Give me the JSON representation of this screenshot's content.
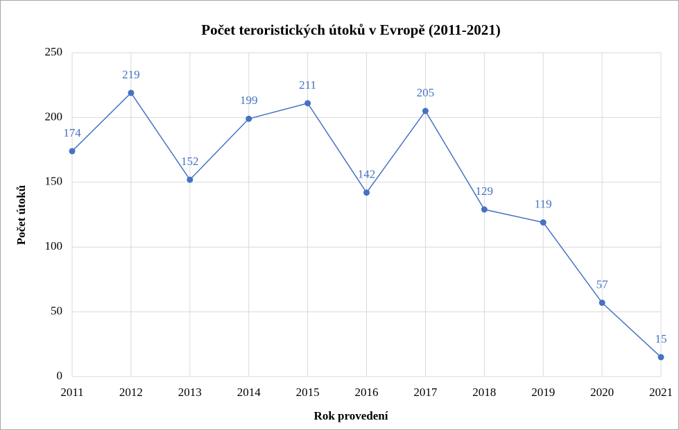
{
  "chart_data": {
    "type": "line",
    "title": "Počet teroristických  útoků v Evropě (2011-2021)",
    "x_label": "Rok provedení",
    "y_label": "Počet útoků",
    "x": [
      2011,
      2012,
      2013,
      2014,
      2015,
      2016,
      2017,
      2018,
      2019,
      2020,
      2021
    ],
    "xlim": [
      2011,
      2021
    ],
    "xticks": [
      2011,
      2012,
      2013,
      2014,
      2015,
      2016,
      2017,
      2018,
      2019,
      2020,
      2021
    ],
    "ylim": [
      0,
      250
    ],
    "yticks": [
      0,
      50,
      100,
      150,
      200,
      250
    ],
    "grid": true,
    "series": [
      {
        "color": "#4472c4",
        "values": [
          174,
          219,
          152,
          199,
          211,
          142,
          205,
          129,
          119,
          57,
          15
        ]
      }
    ]
  }
}
